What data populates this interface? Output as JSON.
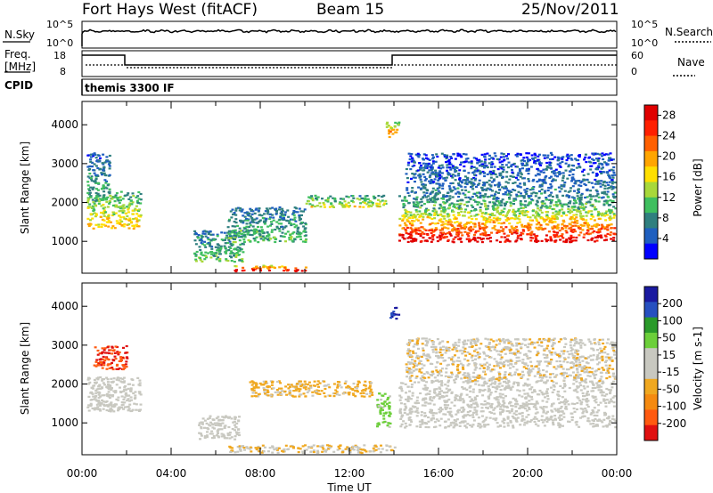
{
  "header": {
    "station": "Fort Hays West (fitACF)",
    "beam": "Beam 15",
    "date": "25/Nov/2011"
  },
  "strip_panels": {
    "noise": {
      "left_label": "N.Sky",
      "right_label": "N.Search",
      "left_ticks": [
        "10^5",
        "10^0"
      ],
      "right_ticks": [
        "10^5",
        "10^0"
      ]
    },
    "frequency": {
      "left_label_top": "Freq.",
      "left_label_unit": "[MHz]",
      "left_ticks": [
        "18",
        "8"
      ],
      "right_label": "Nave",
      "right_ticks": [
        "60",
        "0"
      ]
    },
    "cpid": {
      "label": "CPID",
      "value": "themis 3300 IF"
    }
  },
  "x_axis": {
    "label": "Time UT",
    "ticks": [
      "00:00",
      "04:00",
      "08:00",
      "12:00",
      "16:00",
      "20:00",
      "00:00"
    ]
  },
  "colors": {
    "frame": "#000000",
    "power_scale": [
      "#0000ff",
      "#1f5fbf",
      "#2f7f7f",
      "#3fbf5f",
      "#a8d83a",
      "#ffdf00",
      "#ffa500",
      "#ff6000",
      "#ff2000",
      "#e00000"
    ],
    "velocity_scale": [
      "#1a1aa0",
      "#2650c0",
      "#2a9a2a",
      "#6ccf3a",
      "#c8c8c0",
      "#c8c8c0",
      "#f0a820",
      "#f58a10",
      "#ff5a10",
      "#e01010"
    ]
  },
  "chart_data": [
    {
      "type": "heatmap",
      "panel": "power",
      "xlabel": "",
      "ylabel": "Slant Range [km]",
      "xlim": [
        0,
        24
      ],
      "ylim": [
        180,
        4600
      ],
      "y_ticks": [
        "1000",
        "2000",
        "3000",
        "4000"
      ],
      "colorbar": {
        "label": "Power [dB]",
        "ticks": [
          "4",
          "8",
          "12",
          "16",
          "20",
          "24",
          "28"
        ],
        "range": [
          0,
          30
        ]
      },
      "regions": [
        {
          "t0": 0.2,
          "t1": 2.6,
          "r0": 1350,
          "r1": 2300,
          "level": 16
        },
        {
          "t0": 0.2,
          "t1": 1.2,
          "r0": 2300,
          "r1": 3300,
          "level": 8
        },
        {
          "t0": 5.0,
          "t1": 7.2,
          "r0": 500,
          "r1": 1300,
          "level": 10
        },
        {
          "t0": 6.8,
          "t1": 10.0,
          "r0": 250,
          "r1": 400,
          "level": 26
        },
        {
          "t0": 6.5,
          "t1": 10.0,
          "r0": 1000,
          "r1": 1900,
          "level": 10
        },
        {
          "t0": 10.0,
          "t1": 13.6,
          "r0": 1900,
          "r1": 2200,
          "level": 14
        },
        {
          "t0": 13.6,
          "t1": 14.2,
          "r0": 3700,
          "r1": 4100,
          "level": 20
        },
        {
          "t0": 14.2,
          "t1": 23.9,
          "r0": 1000,
          "r1": 1700,
          "level": 26
        },
        {
          "t0": 14.2,
          "t1": 23.9,
          "r0": 1700,
          "r1": 2200,
          "level": 12
        },
        {
          "t0": 14.5,
          "t1": 23.9,
          "r0": 2200,
          "r1": 3300,
          "level": 6
        }
      ]
    },
    {
      "type": "heatmap",
      "panel": "velocity",
      "xlabel": "Time UT",
      "ylabel": "Slant Range [km]",
      "xlim": [
        0,
        24
      ],
      "ylim": [
        180,
        4600
      ],
      "y_ticks": [
        "1000",
        "2000",
        "3000",
        "4000"
      ],
      "colorbar": {
        "label": "Velocity [m s-1]",
        "ticks": [
          "200",
          "100",
          "50",
          "15",
          "-15",
          "-50",
          "-100",
          "-200"
        ],
        "range": [
          -250,
          250
        ]
      },
      "regions": [
        {
          "t0": 0.2,
          "t1": 2.6,
          "r0": 1300,
          "r1": 2200,
          "level": 0
        },
        {
          "t0": 0.5,
          "t1": 2.0,
          "r0": 2400,
          "r1": 3000,
          "level": -200
        },
        {
          "t0": 5.2,
          "t1": 7.0,
          "r0": 600,
          "r1": 1200,
          "level": 0
        },
        {
          "t0": 7.5,
          "t1": 13.0,
          "r0": 1700,
          "r1": 2100,
          "level": -60
        },
        {
          "t0": 6.5,
          "t1": 14.0,
          "r0": 250,
          "r1": 450,
          "level": -50
        },
        {
          "t0": 13.8,
          "t1": 14.2,
          "r0": 3700,
          "r1": 4000,
          "level": 200
        },
        {
          "t0": 13.2,
          "t1": 13.8,
          "r0": 900,
          "r1": 1800,
          "level": 60
        },
        {
          "t0": 14.2,
          "t1": 23.9,
          "r0": 900,
          "r1": 2100,
          "level": 0
        },
        {
          "t0": 14.5,
          "t1": 23.9,
          "r0": 2100,
          "r1": 3200,
          "level": -40
        }
      ]
    }
  ]
}
